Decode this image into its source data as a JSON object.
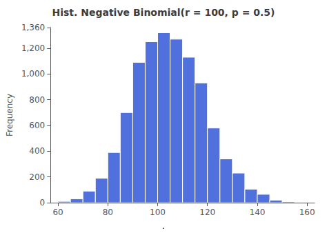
{
  "chart_data": {
    "type": "histogram",
    "title": "Hist. Negative Binomial(r = 100, p = 0.5)",
    "ylabel": "Frequency",
    "annotations": [
      "."
    ],
    "bins": [
      60,
      65,
      70,
      75,
      80,
      85,
      90,
      95,
      100,
      105,
      110,
      115,
      120,
      125,
      130,
      135,
      140,
      145,
      150,
      155,
      160
    ],
    "values": [
      10,
      30,
      90,
      190,
      390,
      700,
      1090,
      1250,
      1320,
      1270,
      1130,
      930,
      580,
      340,
      230,
      105,
      65,
      20,
      8,
      3
    ],
    "xlim": [
      57,
      163
    ],
    "xticks": [
      60,
      80,
      100,
      120,
      140,
      160
    ],
    "ylim": [
      0,
      1360
    ],
    "yticks": [
      0,
      200,
      400,
      600,
      800,
      1000,
      1200
    ],
    "grid": false
  }
}
